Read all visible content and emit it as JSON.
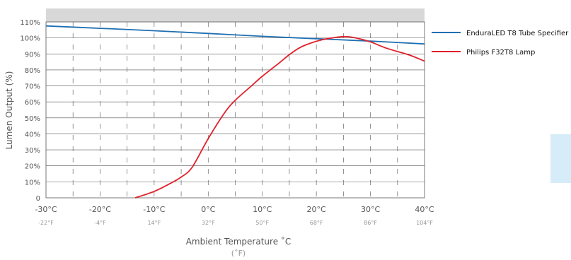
{
  "chart_data": {
    "type": "line",
    "xlabel": "Ambient Temperature ˚C",
    "xlabel_sub": "(˚F)",
    "ylabel": "Lumen Output (%)",
    "x_ticks": [
      "-30°C",
      "-20°C",
      "-10°C",
      "0°C",
      "10°C",
      "20°C",
      "30°C",
      "40°C"
    ],
    "x_ticks_f": [
      "-22°F",
      "-4°F",
      "14°F",
      "32°F",
      "50°F",
      "68°F",
      "86°F",
      "104°F"
    ],
    "y_ticks": [
      "0",
      "10%",
      "20%",
      "30%",
      "40%",
      "50%",
      "60%",
      "70%",
      "80%",
      "90%",
      "100%",
      "110%"
    ],
    "xlim": [
      -30,
      40
    ],
    "ylim": [
      0,
      110
    ],
    "grid": true,
    "legend_position": "right",
    "series": [
      {
        "name": "EnduraLED T8 Tube Specifier",
        "color": "#1f6fb2",
        "x": [
          -30,
          -20,
          -10,
          0,
          10,
          20,
          30,
          40
        ],
        "y": [
          107.5,
          106,
          104.5,
          102.8,
          101,
          99.5,
          98,
          96.2
        ]
      },
      {
        "name": "Philips F32T8 Lamp",
        "color": "#e0202a",
        "x": [
          -13.5,
          -10,
          -7,
          -5,
          -3,
          0,
          3,
          5,
          8,
          10,
          13,
          15,
          17,
          19,
          21,
          23,
          25,
          27,
          30,
          33,
          37,
          40
        ],
        "y": [
          0,
          4,
          9,
          13,
          19,
          37,
          53,
          61,
          70,
          76,
          84,
          89.5,
          94,
          96.8,
          98.8,
          100,
          100.8,
          100.2,
          97.5,
          93.5,
          89.5,
          85.5
        ]
      }
    ]
  }
}
